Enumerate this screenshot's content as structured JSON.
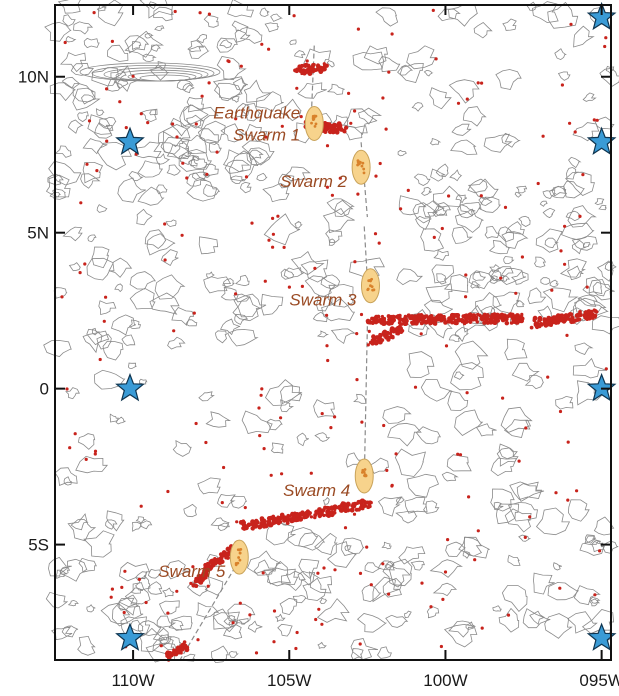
{
  "map": {
    "lon_range": [
      -112.5,
      -94.7
    ],
    "lat_range": [
      -8.7,
      12.3
    ],
    "colors": {
      "frame": "#111111",
      "contour": "#8a8a8a",
      "seismicity": "#c8231c",
      "swarm_fill": "#f7d38c",
      "swarm_stroke": "#c9a35a",
      "swarm_core": "#d9822b",
      "station_fill": "#3a9bd6",
      "station_stroke": "#0f3550",
      "label": "#9a4a23"
    },
    "lat_ticks": [
      {
        "value": 10,
        "label": "10N"
      },
      {
        "value": 5,
        "label": "5N"
      },
      {
        "value": 0,
        "label": "0"
      },
      {
        "value": -5,
        "label": "5S"
      }
    ],
    "lon_ticks": [
      {
        "value": -110,
        "label": "110W"
      },
      {
        "value": -105,
        "label": "105W"
      },
      {
        "value": -100,
        "label": "100W"
      },
      {
        "value": -95,
        "label": "095W"
      }
    ],
    "swarms": [
      {
        "label_lines": [
          "Earthquake",
          "Swarm 1"
        ],
        "lon": -104.2,
        "lat": 8.5,
        "anchor": "right"
      },
      {
        "label_lines": [
          "Swarm 2"
        ],
        "lon": -102.7,
        "lat": 7.1,
        "anchor": "left"
      },
      {
        "label_lines": [
          "Swarm 3"
        ],
        "lon": -102.4,
        "lat": 3.3,
        "anchor": "left"
      },
      {
        "label_lines": [
          "Swarm 4"
        ],
        "lon": -102.6,
        "lat": -2.8,
        "anchor": "left"
      },
      {
        "label_lines": [
          "Swarm 5"
        ],
        "lon": -106.6,
        "lat": -5.4,
        "anchor": "left"
      }
    ],
    "stations": [
      {
        "lon": -110.1,
        "lat": 7.9
      },
      {
        "lon": -110.1,
        "lat": 0.0
      },
      {
        "lon": -110.1,
        "lat": -8.0
      },
      {
        "lon": -95.0,
        "lat": 11.9
      },
      {
        "lon": -95.0,
        "lat": 7.9
      },
      {
        "lon": -95.0,
        "lat": 0.0
      },
      {
        "lon": -95.0,
        "lat": -8.0
      }
    ],
    "seismicity_bands": [
      {
        "from": [
          -104.8,
          10.2
        ],
        "to": [
          -103.8,
          10.3
        ]
      },
      {
        "from": [
          -104.5,
          8.4
        ],
        "to": [
          -103.2,
          8.35
        ]
      },
      {
        "from": [
          -102.5,
          2.2
        ],
        "to": [
          -97.5,
          2.25
        ]
      },
      {
        "from": [
          -97.2,
          2.1
        ],
        "to": [
          -95.2,
          2.4
        ]
      },
      {
        "from": [
          -102.4,
          1.5
        ],
        "to": [
          -101.4,
          1.9
        ]
      },
      {
        "from": [
          -103.4,
          -3.8
        ],
        "to": [
          -102.4,
          -3.7
        ]
      },
      {
        "from": [
          -106.5,
          -4.4
        ],
        "to": [
          -103.5,
          -3.9
        ]
      },
      {
        "from": [
          -107.7,
          -5.8
        ],
        "to": [
          -106.6,
          -5.0
        ]
      },
      {
        "from": [
          -108.1,
          -6.3
        ],
        "to": [
          -107.6,
          -5.9
        ]
      },
      {
        "from": [
          -108.9,
          -8.6
        ],
        "to": [
          -108.2,
          -8.2
        ]
      }
    ],
    "ridge_segments": [
      {
        "from": [
          -104.2,
          11.0
        ],
        "to": [
          -104.3,
          8.6
        ]
      },
      {
        "from": [
          -102.7,
          7.9
        ],
        "to": [
          -102.5,
          5.5
        ]
      },
      {
        "from": [
          -102.6,
          5.2
        ],
        "to": [
          -102.5,
          3.5
        ]
      },
      {
        "from": [
          -102.5,
          2.0
        ],
        "to": [
          -102.6,
          -3.0
        ]
      },
      {
        "from": [
          -106.6,
          -5.5
        ],
        "to": [
          -108.5,
          -8.7
        ]
      }
    ]
  }
}
